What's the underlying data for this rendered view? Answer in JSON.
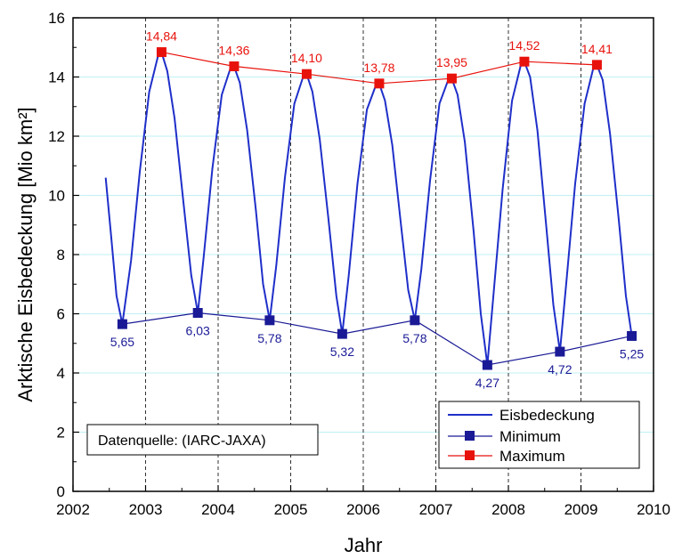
{
  "chart_data": {
    "type": "line",
    "title": "",
    "xlabel": "Jahr",
    "ylabel": "Arktische Eisbedeckung [Mio km²]",
    "xlim": [
      2002,
      2010
    ],
    "ylim": [
      0,
      16
    ],
    "xticks": [
      "2002",
      "2003",
      "2004",
      "2005",
      "2006",
      "2007",
      "2008",
      "2009",
      "2010"
    ],
    "yticks": [
      "0",
      "2",
      "4",
      "6",
      "8",
      "10",
      "12",
      "14",
      "16"
    ],
    "grid": "horizontal light cyan lines at every y tick; vertical dashed lines at years 2003–2009",
    "legend_position": "bottom-right",
    "source_note": "Datenquelle: (IARC-JAXA)",
    "colors": {
      "eisbedeckung": "#1f2fc9",
      "minimum": "#1a1a96",
      "maximum": "#e8120c",
      "grid": "#bff0f5"
    },
    "series": [
      {
        "name": "Eisbedeckung",
        "note": "seasonal cycle, approximately reconstructed",
        "x": [
          2002.45,
          2002.53,
          2002.6,
          2002.68,
          2002.8,
          2002.92,
          2003.05,
          2003.17,
          2003.22,
          2003.3,
          2003.4,
          2003.52,
          2003.63,
          2003.72,
          2003.8,
          2003.92,
          2004.05,
          2004.17,
          2004.22,
          2004.3,
          2004.4,
          2004.52,
          2004.62,
          2004.71,
          2004.8,
          2004.92,
          2005.05,
          2005.17,
          2005.22,
          2005.3,
          2005.4,
          2005.52,
          2005.63,
          2005.71,
          2005.8,
          2005.92,
          2006.05,
          2006.17,
          2006.22,
          2006.3,
          2006.4,
          2006.52,
          2006.62,
          2006.71,
          2006.8,
          2006.92,
          2007.05,
          2007.17,
          2007.22,
          2007.3,
          2007.4,
          2007.52,
          2007.62,
          2007.71,
          2007.8,
          2007.92,
          2008.05,
          2008.17,
          2008.22,
          2008.3,
          2008.4,
          2008.52,
          2008.62,
          2008.71,
          2008.8,
          2008.92,
          2009.05,
          2009.17,
          2009.22,
          2009.3,
          2009.4,
          2009.52,
          2009.62,
          2009.7
        ],
        "y": [
          10.6,
          8.5,
          6.6,
          5.65,
          7.8,
          10.8,
          13.5,
          14.7,
          14.84,
          14.2,
          12.6,
          9.8,
          7.3,
          6.03,
          7.9,
          10.9,
          13.4,
          14.3,
          14.36,
          13.8,
          12.2,
          9.5,
          7.0,
          5.78,
          7.6,
          10.6,
          13.1,
          14.0,
          14.1,
          13.5,
          11.9,
          9.2,
          6.6,
          5.32,
          7.3,
          10.4,
          12.9,
          13.7,
          13.78,
          13.2,
          11.7,
          9.0,
          6.8,
          5.78,
          7.5,
          10.5,
          13.1,
          13.9,
          13.95,
          13.4,
          11.8,
          8.8,
          6.0,
          4.27,
          6.8,
          10.2,
          13.2,
          14.4,
          14.52,
          14.0,
          12.2,
          9.0,
          6.3,
          4.72,
          7.1,
          10.4,
          13.1,
          14.3,
          14.41,
          13.9,
          12.1,
          9.2,
          6.6,
          5.25
        ]
      },
      {
        "name": "Minimum",
        "x": [
          2002.68,
          2003.72,
          2004.71,
          2005.71,
          2006.71,
          2007.71,
          2008.71,
          2009.7
        ],
        "y": [
          5.65,
          6.03,
          5.78,
          5.32,
          5.78,
          4.27,
          4.72,
          5.25
        ],
        "labels": [
          "5,65",
          "6,03",
          "5,78",
          "5,32",
          "5,78",
          "4,27",
          "4,72",
          "5,25"
        ]
      },
      {
        "name": "Maximum",
        "x": [
          2003.22,
          2004.22,
          2005.22,
          2006.22,
          2007.22,
          2008.22,
          2009.22
        ],
        "y": [
          14.84,
          14.36,
          14.1,
          13.78,
          13.95,
          14.52,
          14.41
        ],
        "labels": [
          "14,84",
          "14,36",
          "14,10",
          "13,78",
          "13,95",
          "14,52",
          "14,41"
        ]
      }
    ]
  }
}
